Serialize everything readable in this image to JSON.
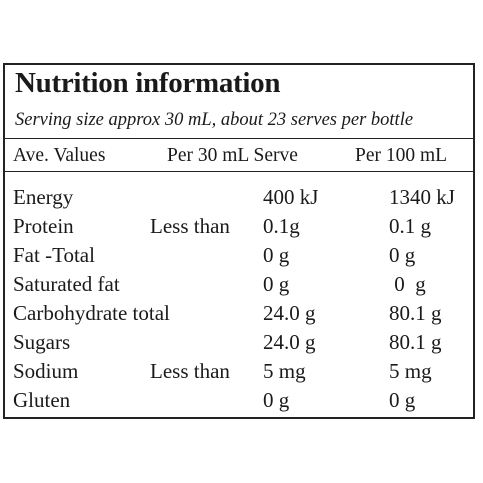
{
  "title": "Nutrition information",
  "subtitle": "Serving size approx 30 mL, about 23 serves per bottle",
  "headers": {
    "col1": "Ave. Values",
    "col2": "Per 30 mL Serve",
    "col3": "Per 100 mL"
  },
  "rows": [
    {
      "name": "Energy",
      "qualifier": "",
      "per_serve": "400 kJ",
      "per_100": "1340 kJ"
    },
    {
      "name": "Protein",
      "qualifier": "Less than",
      "per_serve": "0.1g",
      "per_100": "0.1 g"
    },
    {
      "name": "Fat -Total",
      "qualifier": "",
      "per_serve": "0 g",
      "per_100": "0 g"
    },
    {
      "name": "Saturated fat",
      "qualifier": "",
      "per_serve": "0 g",
      "per_100": " 0  g"
    },
    {
      "name": "Carbohydrate total",
      "qualifier": "",
      "per_serve": "24.0 g",
      "per_100": "80.1 g"
    },
    {
      "name": "Sugars",
      "qualifier": "",
      "per_serve": "24.0 g",
      "per_100": "80.1 g"
    },
    {
      "name": "Sodium",
      "qualifier": "Less than",
      "per_serve": "5 mg",
      "per_100": "5 mg"
    },
    {
      "name": "Gluten",
      "qualifier": "",
      "per_serve": "0 g",
      "per_100": "0 g"
    }
  ]
}
